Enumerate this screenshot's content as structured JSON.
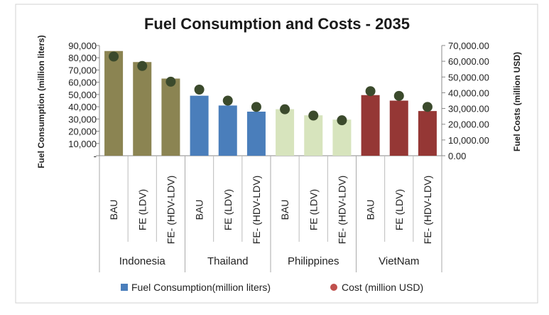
{
  "chart_data": {
    "type": "bar",
    "title": "Fuel Consumption and Costs - 2035",
    "ylabel": "Fuel Consumption (million liters)",
    "y2label": "Fuel Costs (million USD)",
    "ylim": [
      0,
      90000
    ],
    "y2lim": [
      0,
      70000
    ],
    "yticks": [
      "-",
      "10,000",
      "20,000",
      "30,000",
      "40,000",
      "50,000",
      "60,000",
      "70,000",
      "80,000",
      "90,000"
    ],
    "y2ticks": [
      "0.00",
      "10,000.00",
      "20,000.00",
      "30,000.00",
      "40,000.00",
      "50,000.00",
      "60,000.00",
      "70,000.00"
    ],
    "legend_position": "bottom",
    "groups": [
      {
        "name": "Indonesia",
        "color": "#8B8452",
        "categories": [
          "BAU",
          "FE (LDV)",
          "FE- (HDV-LDV)"
        ],
        "fuel": [
          85500,
          76500,
          63000
        ],
        "cost": [
          63000,
          57000,
          47000
        ]
      },
      {
        "name": "Thailand",
        "color": "#4A7EBB",
        "categories": [
          "BAU",
          "FE (LDV)",
          "FE- (HDV-LDV)"
        ],
        "fuel": [
          49000,
          41000,
          36000
        ],
        "cost": [
          42000,
          35000,
          31000
        ]
      },
      {
        "name": "Philippines",
        "color": "#D7E4BD",
        "categories": [
          "BAU",
          "FE (LDV)",
          "FE- (HDV-LDV)"
        ],
        "fuel": [
          38000,
          33000,
          29500
        ],
        "cost": [
          29500,
          25500,
          22500
        ]
      },
      {
        "name": "VietNam",
        "color": "#953735",
        "categories": [
          "BAU",
          "FE (LDV)",
          "FE- (HDV-LDV)"
        ],
        "fuel": [
          49500,
          45000,
          36500
        ],
        "cost": [
          41000,
          38000,
          31000
        ]
      }
    ],
    "series": [
      {
        "name": "Fuel Consumption(million liters)",
        "marker": "square",
        "color": "#4A7EBB"
      },
      {
        "name": "Cost (million USD)",
        "marker": "circle",
        "color": "#C0504D"
      }
    ],
    "dot_color": "#3B4A2C"
  }
}
